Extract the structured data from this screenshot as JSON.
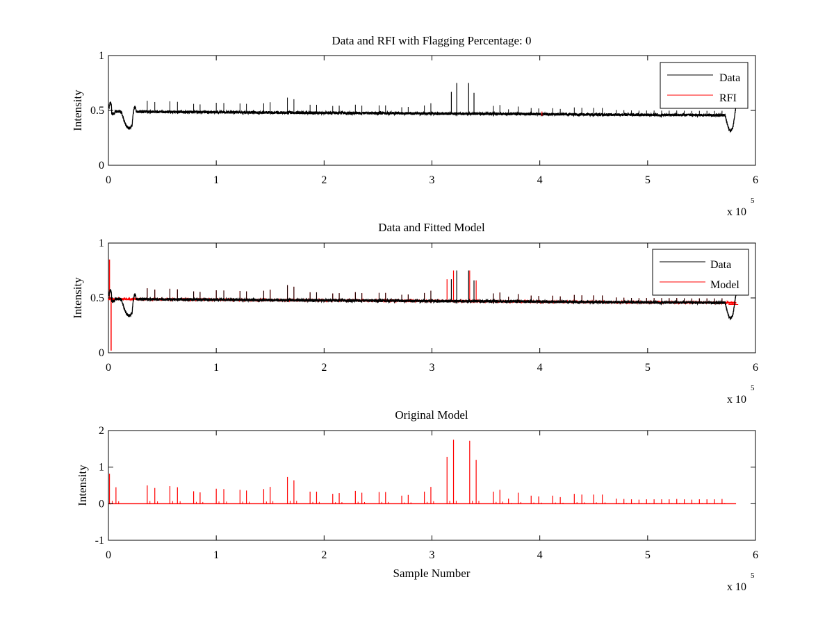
{
  "colors": {
    "data": "#000000",
    "rfi": "#ff0000",
    "model": "#ff0000",
    "axes": "#000000"
  },
  "chart_data": [
    {
      "type": "line",
      "title": "Data and RFI with Flagging Percentage: 0",
      "xlabel": "",
      "ylabel": "Intensity",
      "xlim": [
        0,
        600000
      ],
      "ylim": [
        0,
        1
      ],
      "xticks": [
        0,
        1,
        2,
        3,
        4,
        5,
        6
      ],
      "yticks": [
        0,
        0.5,
        1
      ],
      "ytick_labels": [
        "0",
        "0.5",
        "1"
      ],
      "x_multiplier": "x 10",
      "x_multiplier_exp": "5",
      "legend": [
        "Data",
        "RFI"
      ],
      "legend_position": "top-right",
      "series": [
        {
          "name": "Data",
          "color": "#000000",
          "baseline_start": 0.49,
          "baseline_end": 0.455,
          "dips": [
            [
              19000,
              0.34
            ],
            [
              577000,
              0.31
            ]
          ],
          "spike_positions": [
            318000,
            323000,
            334000,
            339000
          ],
          "spike_heights": [
            0.67,
            0.75,
            0.75,
            0.66
          ]
        },
        {
          "name": "RFI",
          "color": "#ff0000",
          "points": [
            [
              402000,
              0.49
            ]
          ]
        }
      ]
    },
    {
      "type": "line",
      "title": "Data and Fitted Model",
      "xlabel": "",
      "ylabel": "Intensity",
      "xlim": [
        0,
        600000
      ],
      "ylim": [
        0,
        1
      ],
      "xticks": [
        0,
        1,
        2,
        3,
        4,
        5,
        6
      ],
      "yticks": [
        0,
        0.5,
        1
      ],
      "ytick_labels": [
        "0",
        "0.5",
        "1"
      ],
      "x_multiplier": "x 10",
      "x_multiplier_exp": "5",
      "legend": [
        "Data",
        "Model"
      ],
      "legend_position": "top-right",
      "series": [
        {
          "name": "Data",
          "color": "#000000"
        },
        {
          "name": "Model",
          "color": "#ff0000",
          "start_spike": 0.85,
          "start_dip": 0.02
        }
      ]
    },
    {
      "type": "line",
      "title": "Original Model",
      "xlabel": "Sample Number",
      "ylabel": "Intensity",
      "xlim": [
        0,
        600000
      ],
      "ylim": [
        -1,
        2
      ],
      "xticks": [
        0,
        1,
        2,
        3,
        4,
        5,
        6
      ],
      "yticks": [
        -1,
        0,
        1,
        2
      ],
      "ytick_labels": [
        "-1",
        "0",
        "1",
        "2"
      ],
      "x_multiplier": "x 10",
      "x_multiplier_exp": "5",
      "legend": [],
      "series": [
        {
          "name": "Model",
          "color": "#ff0000",
          "spikes": [
            [
              1000,
              0.82
            ],
            [
              7000,
              0.45
            ],
            [
              36000,
              0.5
            ],
            [
              43000,
              0.43
            ],
            [
              57000,
              0.48
            ],
            [
              64000,
              0.45
            ],
            [
              79000,
              0.34
            ],
            [
              85000,
              0.31
            ],
            [
              100000,
              0.41
            ],
            [
              107000,
              0.4
            ],
            [
              122000,
              0.38
            ],
            [
              128000,
              0.36
            ],
            [
              144000,
              0.4
            ],
            [
              150000,
              0.46
            ],
            [
              166000,
              0.73
            ],
            [
              172000,
              0.64
            ],
            [
              187000,
              0.33
            ],
            [
              193000,
              0.33
            ],
            [
              208000,
              0.27
            ],
            [
              214000,
              0.29
            ],
            [
              229000,
              0.35
            ],
            [
              235000,
              0.3
            ],
            [
              251000,
              0.32
            ],
            [
              257000,
              0.32
            ],
            [
              272000,
              0.22
            ],
            [
              278000,
              0.24
            ],
            [
              293000,
              0.33
            ],
            [
              299000,
              0.46
            ],
            [
              314000,
              1.28
            ],
            [
              320000,
              1.75
            ],
            [
              335000,
              1.72
            ],
            [
              341000,
              1.2
            ],
            [
              357000,
              0.33
            ],
            [
              363000,
              0.38
            ],
            [
              371000,
              0.14
            ],
            [
              380000,
              0.3
            ],
            [
              392000,
              0.22
            ],
            [
              399000,
              0.2
            ],
            [
              412000,
              0.22
            ],
            [
              419000,
              0.18
            ],
            [
              432000,
              0.27
            ],
            [
              439000,
              0.25
            ],
            [
              450000,
              0.25
            ],
            [
              458000,
              0.25
            ],
            [
              471000,
              0.14
            ],
            [
              478000,
              0.13
            ],
            [
              485000,
              0.12
            ],
            [
              492000,
              0.11
            ],
            [
              499000,
              0.12
            ],
            [
              506000,
              0.12
            ],
            [
              513000,
              0.12
            ],
            [
              520000,
              0.12
            ],
            [
              527000,
              0.13
            ],
            [
              534000,
              0.12
            ],
            [
              541000,
              0.11
            ],
            [
              548000,
              0.12
            ],
            [
              555000,
              0.12
            ],
            [
              562000,
              0.12
            ],
            [
              569000,
              0.13
            ]
          ]
        }
      ]
    }
  ]
}
